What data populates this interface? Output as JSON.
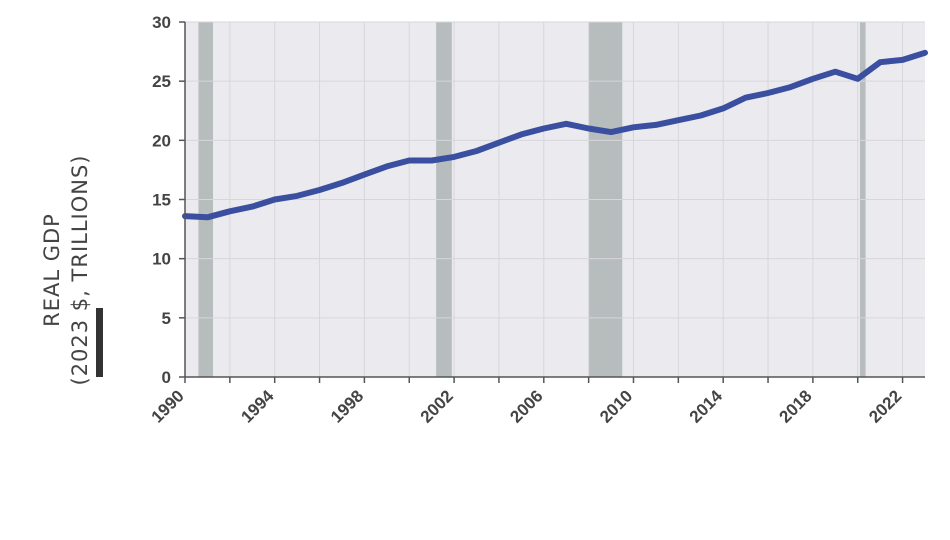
{
  "chart_data": {
    "type": "line",
    "title": "",
    "ylabel_line1": "REAL GDP",
    "ylabel_line2": "(2023 $, TRILLIONS)",
    "xlim": [
      1990,
      2023
    ],
    "ylim": [
      0,
      30
    ],
    "yticks": [
      0,
      5,
      10,
      15,
      20,
      25,
      30
    ],
    "xticks": [
      1990,
      1994,
      1998,
      2002,
      2006,
      2010,
      2014,
      2018,
      2022
    ],
    "grid": true,
    "legend": "none",
    "colors": {
      "line": "#3b4fa0",
      "plot_bg": "#ebebef",
      "recession": "#b7bcbc",
      "grid": "#d6d6dc"
    },
    "recessions": [
      [
        1990.6,
        1991.25
      ],
      [
        2001.2,
        2001.9
      ],
      [
        2008.0,
        2009.5
      ],
      [
        2020.1,
        2020.35
      ]
    ],
    "series": [
      {
        "x": [
          1990,
          1991,
          1992,
          1993,
          1994,
          1995,
          1996,
          1997,
          1998,
          1999,
          2000,
          2001,
          2002,
          2003,
          2004,
          2005,
          2006,
          2007,
          2008,
          2009,
          2010,
          2011,
          2012,
          2013,
          2014,
          2015,
          2016,
          2017,
          2018,
          2019,
          2020,
          2021,
          2022,
          2023
        ],
        "values": [
          13.6,
          13.5,
          14.0,
          14.4,
          15.0,
          15.3,
          15.8,
          16.4,
          17.1,
          17.8,
          18.3,
          18.3,
          18.6,
          19.1,
          19.8,
          20.5,
          21.0,
          21.4,
          21.0,
          20.7,
          21.1,
          21.3,
          21.7,
          22.1,
          22.7,
          23.6,
          24.0,
          24.5,
          25.2,
          25.8,
          25.2,
          26.6,
          26.8,
          27.4
        ]
      }
    ]
  }
}
